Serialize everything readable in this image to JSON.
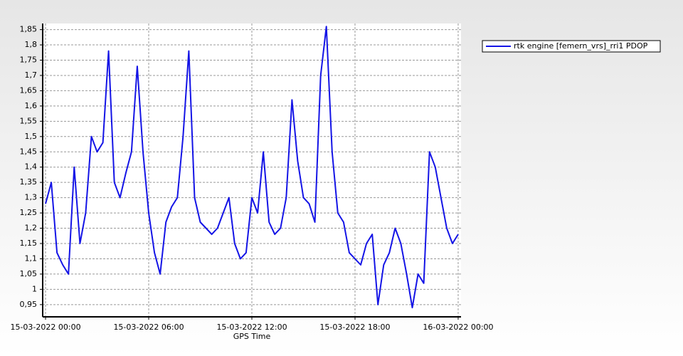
{
  "chart_data": {
    "type": "line",
    "xlabel": "GPS Time",
    "x": [
      "15-03-2022 00:00",
      "15-03-2022 00:20",
      "15-03-2022 00:40",
      "15-03-2022 01:00",
      "15-03-2022 01:20",
      "15-03-2022 01:40",
      "15-03-2022 02:00",
      "15-03-2022 02:20",
      "15-03-2022 02:40",
      "15-03-2022 03:00",
      "15-03-2022 03:20",
      "15-03-2022 03:40",
      "15-03-2022 04:00",
      "15-03-2022 04:20",
      "15-03-2022 04:40",
      "15-03-2022 05:00",
      "15-03-2022 05:20",
      "15-03-2022 05:40",
      "15-03-2022 06:00",
      "15-03-2022 06:20",
      "15-03-2022 06:40",
      "15-03-2022 07:00",
      "15-03-2022 07:20",
      "15-03-2022 07:40",
      "15-03-2022 08:00",
      "15-03-2022 08:20",
      "15-03-2022 08:40",
      "15-03-2022 09:00",
      "15-03-2022 09:20",
      "15-03-2022 09:40",
      "15-03-2022 10:00",
      "15-03-2022 10:20",
      "15-03-2022 10:40",
      "15-03-2022 11:00",
      "15-03-2022 11:20",
      "15-03-2022 11:40",
      "15-03-2022 12:00",
      "15-03-2022 12:20",
      "15-03-2022 12:40",
      "15-03-2022 13:00",
      "15-03-2022 13:20",
      "15-03-2022 13:40",
      "15-03-2022 14:00",
      "15-03-2022 14:20",
      "15-03-2022 14:40",
      "15-03-2022 15:00",
      "15-03-2022 15:20",
      "15-03-2022 15:40",
      "15-03-2022 16:00",
      "15-03-2022 16:20",
      "15-03-2022 16:40",
      "15-03-2022 17:00",
      "15-03-2022 17:20",
      "15-03-2022 17:40",
      "15-03-2022 18:00",
      "15-03-2022 18:20",
      "15-03-2022 18:40",
      "15-03-2022 19:00",
      "15-03-2022 19:20",
      "15-03-2022 19:40",
      "15-03-2022 20:00",
      "15-03-2022 20:20",
      "15-03-2022 20:40",
      "15-03-2022 21:00",
      "15-03-2022 21:20",
      "15-03-2022 21:40",
      "15-03-2022 22:00",
      "15-03-2022 22:20",
      "15-03-2022 22:40",
      "15-03-2022 23:00",
      "15-03-2022 23:20",
      "15-03-2022 23:40",
      "16-03-2022 00:00"
    ],
    "series": [
      {
        "name": "rtk engine [femern_vrs]_rri1 PDOP",
        "color": "#1414e6",
        "values": [
          1.28,
          1.35,
          1.12,
          1.08,
          1.05,
          1.4,
          1.15,
          1.25,
          1.5,
          1.45,
          1.48,
          1.78,
          1.35,
          1.3,
          1.38,
          1.45,
          1.73,
          1.45,
          1.25,
          1.12,
          1.05,
          1.22,
          1.27,
          1.3,
          1.5,
          1.78,
          1.3,
          1.22,
          1.2,
          1.18,
          1.2,
          1.25,
          1.3,
          1.15,
          1.1,
          1.12,
          1.3,
          1.25,
          1.45,
          1.22,
          1.18,
          1.2,
          1.3,
          1.62,
          1.42,
          1.3,
          1.28,
          1.22,
          1.7,
          1.86,
          1.45,
          1.25,
          1.22,
          1.12,
          1.1,
          1.08,
          1.15,
          1.18,
          0.95,
          1.08,
          1.12,
          1.2,
          1.15,
          1.05,
          0.94,
          1.05,
          1.02,
          1.45,
          1.4,
          1.3,
          1.2,
          1.15,
          1.18
        ]
      }
    ],
    "xlim": [
      "14-03-2022 23:50",
      "16-03-2022 00:10"
    ],
    "xticks": [
      "15-03-2022 00:00",
      "15-03-2022 06:00",
      "15-03-2022 12:00",
      "15-03-2022 18:00",
      "16-03-2022 00:00"
    ],
    "ylim": [
      0.91,
      1.87
    ],
    "yticks": [
      {
        "value": 0.95,
        "label": "0,95"
      },
      1,
      {
        "value": 1.05,
        "label": "1,05"
      },
      {
        "value": 1.1,
        "label": "1,1"
      },
      {
        "value": 1.15,
        "label": "1,15"
      },
      {
        "value": 1.2,
        "label": "1,2"
      },
      {
        "value": 1.25,
        "label": "1,25"
      },
      {
        "value": 1.3,
        "label": "1,3"
      },
      {
        "value": 1.35,
        "label": "1,35"
      },
      {
        "value": 1.4,
        "label": "1,4"
      },
      {
        "value": 1.45,
        "label": "1,45"
      },
      {
        "value": 1.5,
        "label": "1,5"
      },
      {
        "value": 1.55,
        "label": "1,55"
      },
      {
        "value": 1.6,
        "label": "1,6"
      },
      {
        "value": 1.65,
        "label": "1,65"
      },
      {
        "value": 1.7,
        "label": "1,7"
      },
      {
        "value": 1.75,
        "label": "1,75"
      },
      {
        "value": 1.8,
        "label": "1,8"
      },
      {
        "value": 1.85,
        "label": "1,85"
      }
    ],
    "grid": true
  }
}
